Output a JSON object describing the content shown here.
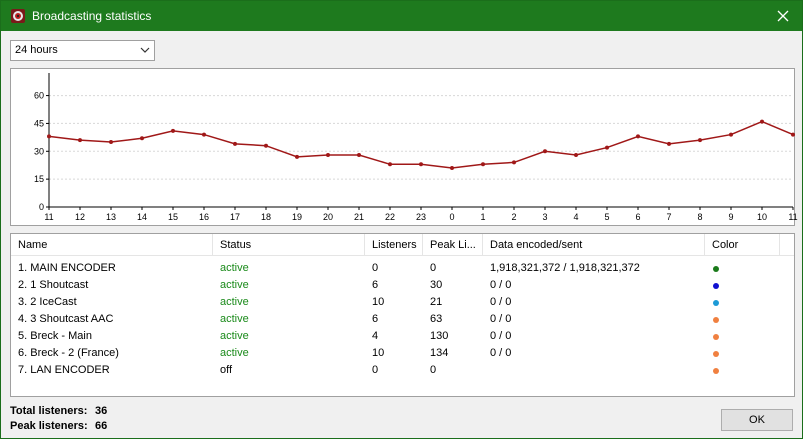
{
  "window": {
    "title": "Broadcasting statistics"
  },
  "period": {
    "selected": "24 hours"
  },
  "chart_data": {
    "type": "line",
    "categories": [
      "11",
      "12",
      "13",
      "14",
      "15",
      "16",
      "17",
      "18",
      "19",
      "20",
      "21",
      "22",
      "23",
      "0",
      "1",
      "2",
      "3",
      "4",
      "5",
      "6",
      "7",
      "8",
      "9",
      "10",
      "11"
    ],
    "values": [
      38,
      36,
      35,
      37,
      41,
      39,
      34,
      33,
      27,
      28,
      28,
      23,
      23,
      21,
      23,
      24,
      30,
      28,
      32,
      38,
      34,
      36,
      39,
      46,
      39
    ],
    "ylim": [
      0,
      70
    ],
    "yticks": [
      "0",
      "15",
      "30",
      "45",
      "60"
    ],
    "grid": true,
    "colors": {
      "line": "#a01818"
    }
  },
  "list": {
    "columns": [
      "Name",
      "Status",
      "Listeners",
      "Peak Li...",
      "Data encoded/sent",
      "Color"
    ],
    "rows": [
      {
        "name": "1. MAIN ENCODER",
        "status": "active",
        "listeners": "0",
        "peak": "0",
        "data": "1,918,321,372 / 1,918,321,372",
        "color": "#1a7a1a"
      },
      {
        "name": "2. 1 Shoutcast",
        "status": "active",
        "listeners": "6",
        "peak": "30",
        "data": "0 / 0",
        "color": "#1010d0"
      },
      {
        "name": "3. 2 IceCast",
        "status": "active",
        "listeners": "10",
        "peak": "21",
        "data": "0 / 0",
        "color": "#1c9ad6"
      },
      {
        "name": "4. 3 Shoutcast AAC",
        "status": "active",
        "listeners": "6",
        "peak": "63",
        "data": "0 / 0",
        "color": "#f08040"
      },
      {
        "name": "5. Breck - Main",
        "status": "active",
        "listeners": "4",
        "peak": "130",
        "data": "0 / 0",
        "color": "#f08040"
      },
      {
        "name": "6. Breck - 2 (France)",
        "status": "active",
        "listeners": "10",
        "peak": "134",
        "data": "0 / 0",
        "color": "#f08040"
      },
      {
        "name": "7. LAN ENCODER",
        "status": "off",
        "listeners": "0",
        "peak": "0",
        "data": "",
        "color": "#f08040"
      }
    ]
  },
  "totals": {
    "total_label": "Total listeners:",
    "total_value": "36",
    "peak_label": "Peak listeners:",
    "peak_value": "66"
  },
  "ok_label": "OK"
}
